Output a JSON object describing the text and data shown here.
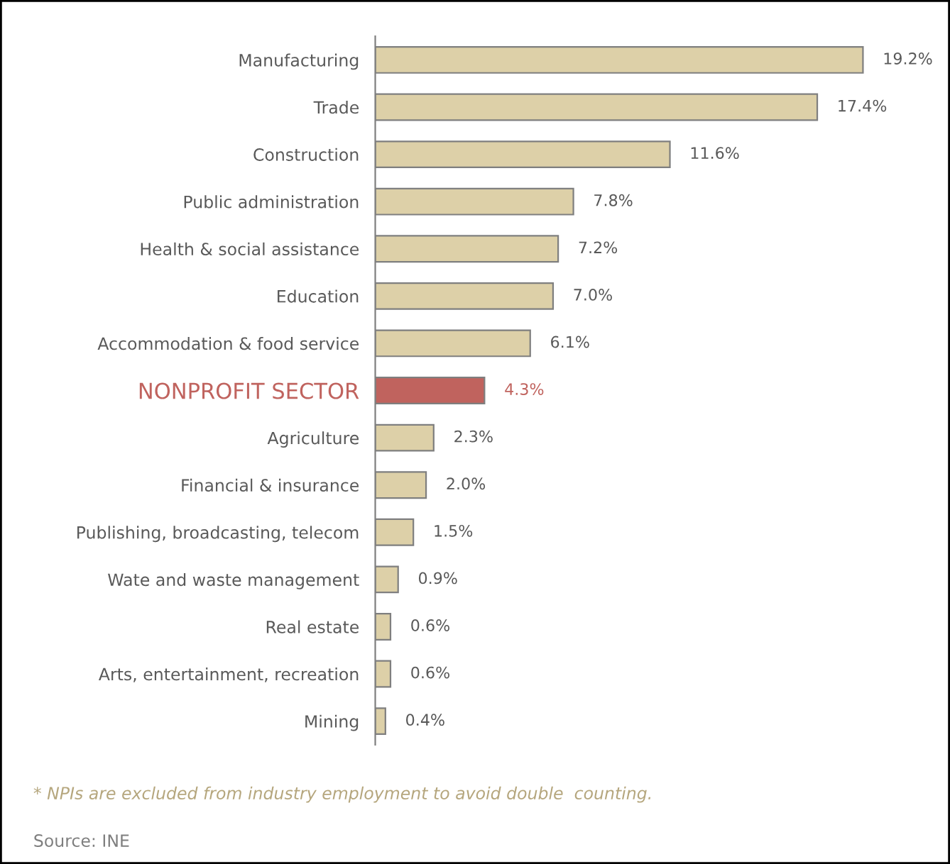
{
  "chart_data": {
    "type": "bar",
    "orientation": "horizontal",
    "categories": [
      "Manufacturing",
      "Trade",
      "Construction",
      "Public administration",
      "Health & social assistance",
      "Education",
      "Accommodation & food service",
      "NONPROFIT SECTOR",
      "Agriculture",
      "Financial & insurance",
      "Publishing, broadcasting, telecom",
      "Wate and waste management",
      "Real estate",
      "Arts, entertainment, recreation",
      "Mining"
    ],
    "values": [
      19.2,
      17.4,
      11.6,
      7.8,
      7.2,
      7.0,
      6.1,
      4.3,
      2.3,
      2.0,
      1.5,
      0.9,
      0.6,
      0.6,
      0.4
    ],
    "value_labels": [
      "19.2%",
      "17.4%",
      "11.6%",
      "7.8%",
      "7.2%",
      "7.0%",
      "6.1%",
      "4.3%",
      "2.3%",
      "2.0%",
      "1.5%",
      "0.9%",
      "0.6%",
      "0.6%",
      "0.4%"
    ],
    "colors": [
      "#ddd0a8",
      "#ddd0a8",
      "#ddd0a8",
      "#ddd0a8",
      "#ddd0a8",
      "#ddd0a8",
      "#ddd0a8",
      "#c0635e",
      "#ddd0a8",
      "#ddd0a8",
      "#ddd0a8",
      "#ddd0a8",
      "#ddd0a8",
      "#ddd0a8",
      "#ddd0a8"
    ],
    "annotations": [
      "* NPIs are excluded from industry employment to avoid double  counting.",
      "Source: INE"
    ]
  }
}
